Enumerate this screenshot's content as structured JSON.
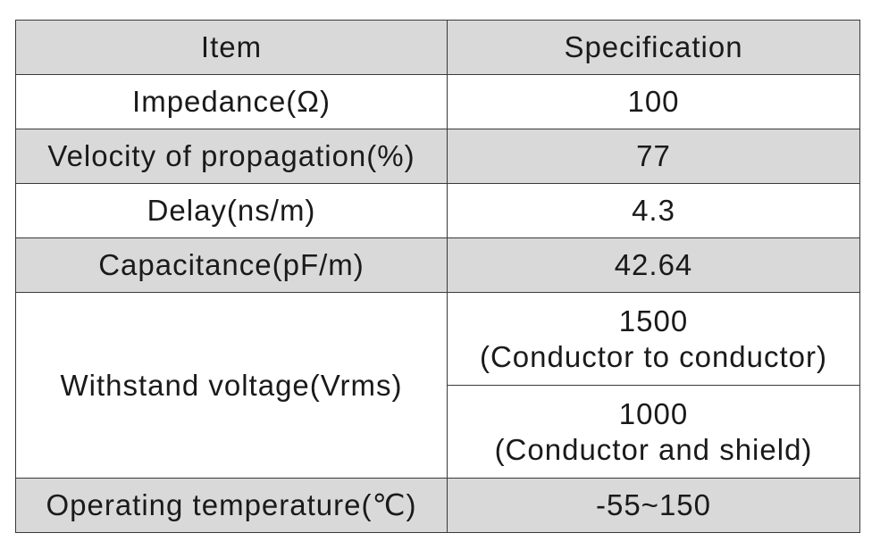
{
  "table": {
    "header": {
      "item": "Item",
      "spec": "Specification"
    },
    "rows": [
      {
        "item": "Impedance(Ω)",
        "spec": "100"
      },
      {
        "item": "Velocity of propagation(%)",
        "spec": "77"
      },
      {
        "item": "Delay(ns/m)",
        "spec": "4.3"
      },
      {
        "item": "Capacitance(pF/m)",
        "spec": "42.64"
      }
    ],
    "withstand": {
      "item": "Withstand voltage(Vrms)",
      "spec1_value": "1500",
      "spec1_note": "(Conductor to conductor)",
      "spec2_value": "1000",
      "spec2_note": "(Conductor and shield)"
    },
    "operating": {
      "item": "Operating temperature(℃)",
      "spec": "-55~150"
    }
  },
  "colors": {
    "shaded_row": "#d9d9d9",
    "border": "#3a3a3a",
    "text": "#1a1a1a"
  }
}
